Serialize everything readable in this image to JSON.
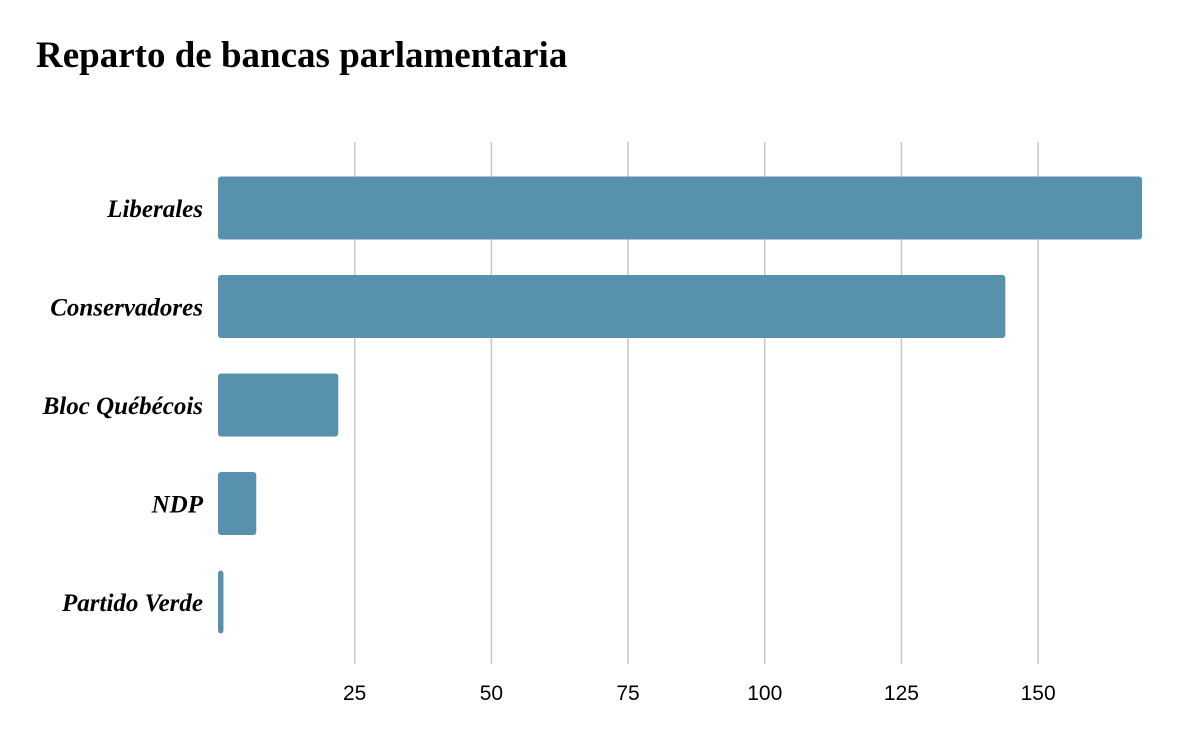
{
  "chart_data": {
    "type": "bar",
    "orientation": "horizontal",
    "title": "Reparto de bancas parlamentaria",
    "categories": [
      "Liberales",
      "Conservadores",
      "Bloc Québécois",
      "NDP",
      "Partido Verde"
    ],
    "values": [
      169,
      144,
      22,
      7,
      1
    ],
    "xlim": [
      0,
      169
    ],
    "xticks": [
      25,
      50,
      75,
      100,
      125,
      150
    ],
    "xlabel": "",
    "ylabel": "",
    "grid": "vertical",
    "legend": "none",
    "bar_color": "#5891AD",
    "grid_color": "#C8C8C8"
  }
}
